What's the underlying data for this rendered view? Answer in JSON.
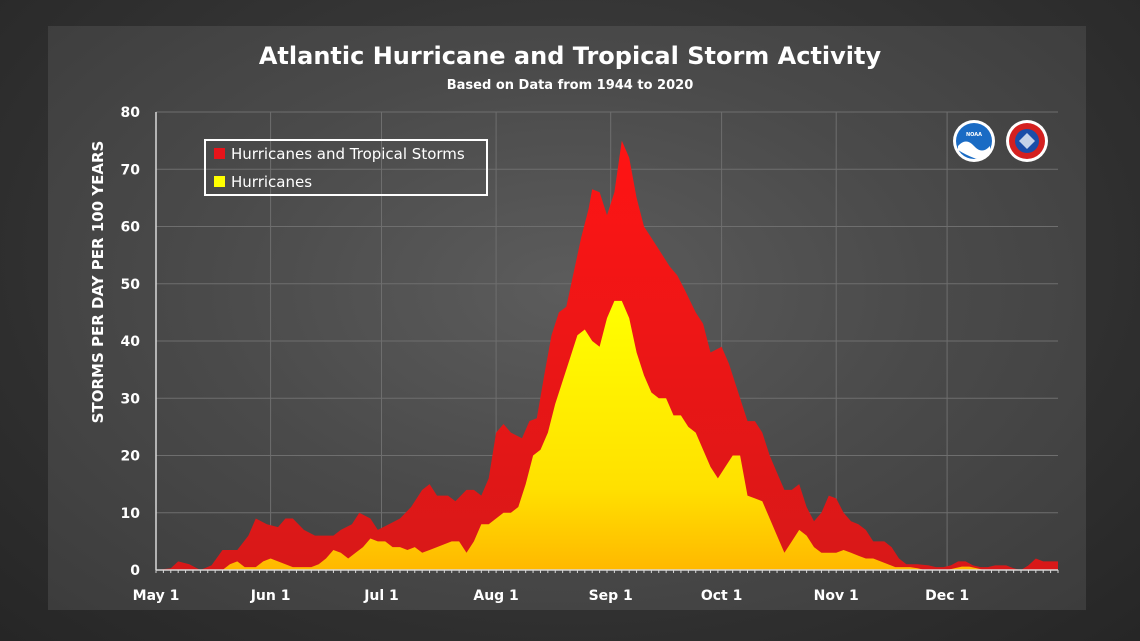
{
  "chart_data": {
    "type": "area",
    "title": "Atlantic Hurricane and Tropical Storm Activity",
    "subtitle": "Based on Data from 1944 to 2020",
    "ylabel": "STORMS PER DAY PER 100 YEARS",
    "xlabel": "",
    "ylim": [
      0,
      80
    ],
    "yticks": [
      0,
      10,
      20,
      30,
      40,
      50,
      60,
      70,
      80
    ],
    "xlim": [
      0,
      244
    ],
    "xticks": [
      {
        "label": "May 1",
        "day": 0
      },
      {
        "label": "Jun 1",
        "day": 31
      },
      {
        "label": "Jul 1",
        "day": 61
      },
      {
        "label": "Aug 1",
        "day": 92
      },
      {
        "label": "Sep 1",
        "day": 123
      },
      {
        "label": "Oct 1",
        "day": 153
      },
      {
        "label": "Nov 1",
        "day": 184
      },
      {
        "label": "Dec 1",
        "day": 214
      }
    ],
    "grid": true,
    "legend_position": "top-left",
    "series": [
      {
        "name": "Hurricanes and Tropical Storms",
        "color": "#e8141a",
        "points": [
          [
            0,
            0
          ],
          [
            4,
            0.3
          ],
          [
            6,
            1.5
          ],
          [
            9,
            1
          ],
          [
            12,
            0
          ],
          [
            15,
            0.8
          ],
          [
            18,
            3.5
          ],
          [
            22,
            3.5
          ],
          [
            25,
            6
          ],
          [
            27,
            9
          ],
          [
            30,
            8
          ],
          [
            33,
            7.5
          ],
          [
            35,
            9
          ],
          [
            37,
            9
          ],
          [
            40,
            7
          ],
          [
            43,
            6
          ],
          [
            46,
            6
          ],
          [
            48,
            6
          ],
          [
            50,
            7
          ],
          [
            53,
            8
          ],
          [
            55,
            10
          ],
          [
            58,
            9
          ],
          [
            60,
            7
          ],
          [
            63,
            8
          ],
          [
            66,
            9
          ],
          [
            69,
            11
          ],
          [
            72,
            14
          ],
          [
            74,
            15
          ],
          [
            76,
            13
          ],
          [
            79,
            13
          ],
          [
            81,
            12
          ],
          [
            84,
            14
          ],
          [
            86,
            14
          ],
          [
            88,
            13
          ],
          [
            90,
            16
          ],
          [
            92,
            24
          ],
          [
            94,
            25.5
          ],
          [
            96,
            24
          ],
          [
            99,
            23
          ],
          [
            101,
            26
          ],
          [
            103,
            26.5
          ],
          [
            105,
            34
          ],
          [
            107,
            41
          ],
          [
            109,
            45
          ],
          [
            111,
            46
          ],
          [
            113,
            52
          ],
          [
            115,
            58
          ],
          [
            117,
            63
          ],
          [
            118,
            66.5
          ],
          [
            120,
            66
          ],
          [
            122,
            62
          ],
          [
            124,
            66
          ],
          [
            126,
            75
          ],
          [
            128,
            72
          ],
          [
            130,
            65
          ],
          [
            132,
            60
          ],
          [
            134,
            58
          ],
          [
            136,
            56
          ],
          [
            139,
            53
          ],
          [
            141,
            51.5
          ],
          [
            143,
            49
          ],
          [
            146,
            45
          ],
          [
            148,
            43
          ],
          [
            150,
            38
          ],
          [
            153,
            39
          ],
          [
            155,
            36
          ],
          [
            157,
            32
          ],
          [
            160,
            26
          ],
          [
            162,
            26
          ],
          [
            164,
            24
          ],
          [
            166,
            20
          ],
          [
            168,
            17
          ],
          [
            170,
            14
          ],
          [
            172,
            14
          ],
          [
            174,
            15
          ],
          [
            176,
            11
          ],
          [
            178,
            8.5
          ],
          [
            180,
            10
          ],
          [
            182,
            13
          ],
          [
            184,
            12.5
          ],
          [
            186,
            10
          ],
          [
            188,
            8.5
          ],
          [
            190,
            8
          ],
          [
            192,
            7
          ],
          [
            194,
            5
          ],
          [
            197,
            5
          ],
          [
            199,
            4
          ],
          [
            201,
            2
          ],
          [
            203,
            1
          ],
          [
            206,
            1
          ],
          [
            209,
            0.8
          ],
          [
            211,
            0.5
          ],
          [
            213,
            0.5
          ],
          [
            215,
            0.8
          ],
          [
            217,
            1.5
          ],
          [
            219,
            1.5
          ],
          [
            221,
            0.8
          ],
          [
            223,
            0.5
          ],
          [
            225,
            0.5
          ],
          [
            227,
            0.8
          ],
          [
            230,
            0.8
          ],
          [
            232,
            0.3
          ],
          [
            234,
            0
          ],
          [
            236,
            0.8
          ],
          [
            238,
            2
          ],
          [
            240,
            1.5
          ],
          [
            242,
            1.5
          ],
          [
            244,
            1.5
          ]
        ]
      },
      {
        "name": "Hurricanes",
        "color": "#ffff00",
        "points": [
          [
            0,
            0
          ],
          [
            18,
            0
          ],
          [
            20,
            1
          ],
          [
            22,
            1.5
          ],
          [
            24,
            0.5
          ],
          [
            27,
            0.5
          ],
          [
            29,
            1.5
          ],
          [
            31,
            2
          ],
          [
            33,
            1.5
          ],
          [
            35,
            1
          ],
          [
            37,
            0.5
          ],
          [
            40,
            0.5
          ],
          [
            42,
            0.5
          ],
          [
            44,
            1
          ],
          [
            46,
            2
          ],
          [
            48,
            3.5
          ],
          [
            50,
            3
          ],
          [
            52,
            2
          ],
          [
            54,
            3
          ],
          [
            56,
            4
          ],
          [
            58,
            5.5
          ],
          [
            60,
            5
          ],
          [
            62,
            5
          ],
          [
            64,
            4
          ],
          [
            66,
            4
          ],
          [
            68,
            3.5
          ],
          [
            70,
            4
          ],
          [
            72,
            3
          ],
          [
            74,
            3.5
          ],
          [
            76,
            4
          ],
          [
            78,
            4.5
          ],
          [
            80,
            5
          ],
          [
            82,
            5
          ],
          [
            84,
            3
          ],
          [
            86,
            5
          ],
          [
            88,
            8
          ],
          [
            90,
            8
          ],
          [
            92,
            9
          ],
          [
            94,
            10
          ],
          [
            96,
            10
          ],
          [
            98,
            11
          ],
          [
            100,
            15
          ],
          [
            102,
            20
          ],
          [
            104,
            21
          ],
          [
            106,
            24
          ],
          [
            108,
            29
          ],
          [
            110,
            33
          ],
          [
            112,
            37
          ],
          [
            114,
            41
          ],
          [
            116,
            42
          ],
          [
            118,
            40
          ],
          [
            120,
            39
          ],
          [
            122,
            44
          ],
          [
            124,
            47
          ],
          [
            126,
            47
          ],
          [
            128,
            44
          ],
          [
            130,
            38
          ],
          [
            132,
            34
          ],
          [
            134,
            31
          ],
          [
            136,
            30
          ],
          [
            138,
            30
          ],
          [
            140,
            27
          ],
          [
            142,
            27
          ],
          [
            144,
            25
          ],
          [
            146,
            24
          ],
          [
            148,
            21
          ],
          [
            150,
            18
          ],
          [
            152,
            16
          ],
          [
            154,
            18
          ],
          [
            156,
            20
          ],
          [
            158,
            20
          ],
          [
            160,
            13
          ],
          [
            162,
            12.5
          ],
          [
            164,
            12
          ],
          [
            166,
            9
          ],
          [
            168,
            6
          ],
          [
            170,
            3
          ],
          [
            172,
            5
          ],
          [
            174,
            7
          ],
          [
            176,
            6
          ],
          [
            178,
            4
          ],
          [
            180,
            3
          ],
          [
            182,
            3
          ],
          [
            184,
            3
          ],
          [
            186,
            3.5
          ],
          [
            188,
            3
          ],
          [
            190,
            2.5
          ],
          [
            192,
            2
          ],
          [
            194,
            2
          ],
          [
            196,
            1.5
          ],
          [
            198,
            1
          ],
          [
            200,
            0.5
          ],
          [
            202,
            0.5
          ],
          [
            204,
            0.5
          ],
          [
            206,
            0.3
          ],
          [
            208,
            0
          ],
          [
            210,
            0
          ],
          [
            212,
            0
          ],
          [
            214,
            0
          ],
          [
            216,
            0.3
          ],
          [
            218,
            0.6
          ],
          [
            220,
            0.6
          ],
          [
            222,
            0.3
          ],
          [
            224,
            0
          ],
          [
            226,
            0
          ],
          [
            228,
            0
          ],
          [
            244,
            0
          ]
        ]
      }
    ]
  },
  "logos": {
    "noaa": {
      "name": "noaa-logo",
      "text": "NOAA",
      "color": "#1a6bc4"
    },
    "nws": {
      "name": "nws-logo",
      "color": "#1a4da8"
    }
  }
}
